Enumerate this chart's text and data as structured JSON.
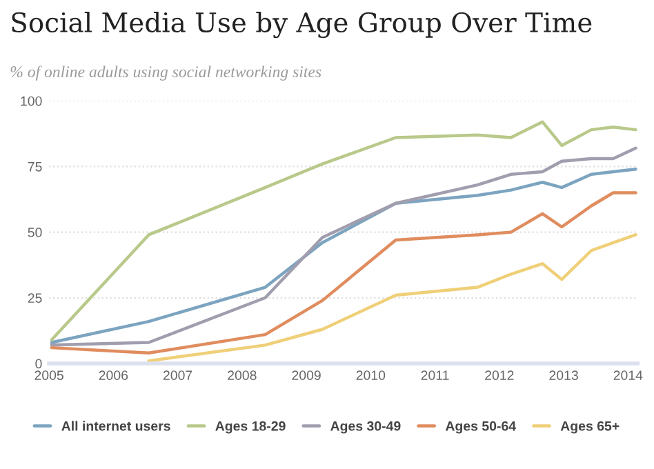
{
  "chart_data": {
    "type": "line",
    "title": "Social Media Use by Age Group Over Time",
    "subtitle": "% of online adults using social networking sites",
    "x": [
      2005.04,
      2006.55,
      2008.36,
      2009.25,
      2010.39,
      2011.66,
      2012.18,
      2012.67,
      2012.97,
      2013.43,
      2013.77,
      2014.12
    ],
    "series": [
      {
        "name": "All internet users",
        "color": "#7ca4c0",
        "values": [
          8,
          16,
          29,
          46,
          61,
          64,
          66,
          69,
          67,
          72,
          73,
          74
        ]
      },
      {
        "name": "Ages 18-29",
        "color": "#b8c98a",
        "values": [
          9,
          49,
          67,
          76,
          86,
          87,
          86,
          92,
          83,
          89,
          90,
          89
        ]
      },
      {
        "name": "Ages 30-49",
        "color": "#a09eae",
        "values": [
          7,
          8,
          25,
          48,
          61,
          68,
          72,
          73,
          77,
          78,
          78,
          82
        ]
      },
      {
        "name": "Ages 50-64",
        "color": "#e08c5e",
        "values": [
          6,
          4,
          11,
          24,
          47,
          49,
          50,
          57,
          52,
          60,
          65,
          65
        ]
      },
      {
        "name": "Ages 65+",
        "color": "#efcf78",
        "values": [
          null,
          1,
          7,
          13,
          26,
          29,
          34,
          38,
          32,
          43,
          46,
          49
        ]
      }
    ],
    "xlim": [
      2005,
      2014.15
    ],
    "xticks": [
      2005,
      2006,
      2007,
      2008,
      2009,
      2010,
      2011,
      2012,
      2013,
      2014
    ],
    "ylim": [
      0,
      100
    ],
    "yticks": [
      0,
      25,
      50,
      75,
      100
    ],
    "grid": "y",
    "legend": "bottom",
    "marker": "none",
    "line_style": "solid"
  }
}
